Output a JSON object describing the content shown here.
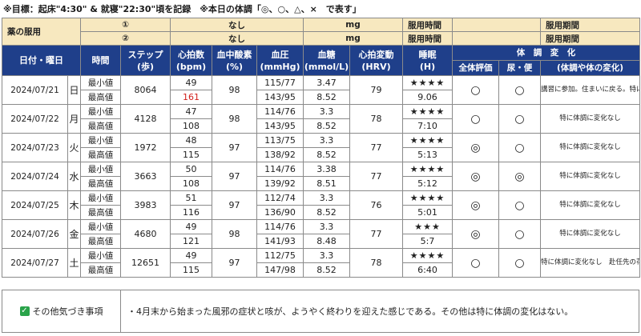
{
  "header_note": "※目標：起床\"4:30\" & 就寝\"22:30\"頃を記録　※本日の体調「◎、○、△、×　で表す」",
  "medicine": {
    "label": "薬の服用",
    "rows": [
      {
        "num": "①",
        "name": "なし",
        "unit": "mg",
        "time_label": "服用時間",
        "time_value": "",
        "period_label": "服用期間",
        "period_value": ""
      },
      {
        "num": "②",
        "name": "なし",
        "unit": "mg",
        "time_label": "服用時間",
        "time_value": "",
        "period_label": "服用期間",
        "period_value": ""
      }
    ]
  },
  "columns": {
    "date": "日付・曜日",
    "time": "時間",
    "steps": "ステップ",
    "steps_unit": "(歩)",
    "hr": "心拍数",
    "hr_unit": "(bpm)",
    "spo2": "血中酸素",
    "spo2_unit": "(%)",
    "bp": "血圧",
    "bp_unit": "(mmHg)",
    "sugar": "血糖",
    "sugar_unit": "(mmol/L)",
    "hrv": "心拍変動",
    "hrv_unit": "(HRV)",
    "sleep": "睡眠",
    "sleep_unit": "(H)",
    "condition": "体　調　変　化",
    "overall": "全体評価",
    "toilet": "尿・便",
    "change": "(体調や体の変化)"
  },
  "labels": {
    "min": "最小値",
    "max": "最高値"
  },
  "days": [
    {
      "date": "2024/07/21",
      "dow": "日",
      "steps": "8064",
      "hr_min": "49",
      "hr_max": "161",
      "spo2": "98",
      "bp_min": "115/77",
      "bp_max": "143/95",
      "sugar_min": "3.47",
      "sugar_max": "8.52",
      "hrv": "79",
      "stars": "★★★★",
      "sleep": "9.06",
      "overall": "○",
      "toilet": "○",
      "note": "講習に参加。住まいに戻る。特に体調に変化なし"
    },
    {
      "date": "2024/07/22",
      "dow": "月",
      "steps": "4128",
      "hr_min": "47",
      "hr_max": "108",
      "spo2": "98",
      "bp_min": "114/76",
      "bp_max": "143/95",
      "sugar_min": "3.3",
      "sugar_max": "8.52",
      "hrv": "78",
      "stars": "★★★★",
      "sleep": "7:10",
      "overall": "○",
      "toilet": "○",
      "note": "特に体調に変化なし"
    },
    {
      "date": "2024/07/23",
      "dow": "火",
      "steps": "1972",
      "hr_min": "48",
      "hr_max": "115",
      "spo2": "97",
      "bp_min": "113/75",
      "bp_max": "138/92",
      "sugar_min": "3.3",
      "sugar_max": "8.52",
      "hrv": "77",
      "stars": "★★★★",
      "sleep": "5:13",
      "overall": "◎",
      "toilet": "○",
      "note": "特に体調に変化なし"
    },
    {
      "date": "2024/07/24",
      "dow": "水",
      "steps": "3663",
      "hr_min": "50",
      "hr_max": "108",
      "spo2": "97",
      "bp_min": "114/76",
      "bp_max": "139/92",
      "sugar_min": "3.38",
      "sugar_max": "8.51",
      "hrv": "77",
      "stars": "★★★★",
      "sleep": "5:12",
      "overall": "◎",
      "toilet": "◎",
      "note": "特に体調に変化なし"
    },
    {
      "date": "2024/07/25",
      "dow": "木",
      "steps": "3983",
      "hr_min": "51",
      "hr_max": "116",
      "spo2": "97",
      "bp_min": "112/74",
      "bp_max": "136/90",
      "sugar_min": "3.3",
      "sugar_max": "8.52",
      "hrv": "76",
      "stars": "★★★★",
      "sleep": "5:01",
      "overall": "◎",
      "toilet": "○",
      "note": "特に体調に変化なし"
    },
    {
      "date": "2024/07/26",
      "dow": "金",
      "steps": "4680",
      "hr_min": "49",
      "hr_max": "121",
      "spo2": "98",
      "bp_min": "114/76",
      "bp_max": "141/93",
      "sugar_min": "3.3",
      "sugar_max": "8.48",
      "hrv": "77",
      "stars": "★★★",
      "sleep": "5:7",
      "overall": "◎",
      "toilet": "○",
      "note": "特に体調に変化なし"
    },
    {
      "date": "2024/07/27",
      "dow": "土",
      "steps": "12651",
      "hr_min": "49",
      "hr_max": "115",
      "spo2": "97",
      "bp_min": "112/75",
      "bp_max": "147/98",
      "sugar_min": "3.3",
      "sugar_max": "8.52",
      "hrv": "78",
      "stars": "★★★★",
      "sleep": "6:40",
      "overall": "○",
      "toilet": "○",
      "note": "特に体調に変化なし　赴任先の花火大火に参加"
    }
  ],
  "footer": {
    "label": "その他気づき事項",
    "text": "・4月末から始まった風邪の症状と咳が、ようやく終わりを迎えた感じである。その他は特に体調の変化はない。"
  }
}
